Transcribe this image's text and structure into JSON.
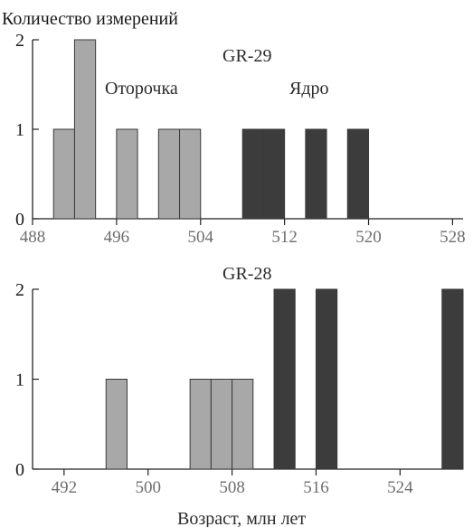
{
  "y_axis_title": "Количество измерений",
  "x_axis_title": "Возраст, млн лет",
  "colors": {
    "rim": "#a8a8a8",
    "core": "#3c3c3c",
    "axis": "#222222"
  },
  "chart_data": [
    {
      "type": "bar",
      "title": "GR-29",
      "ylabel": "Количество измерений",
      "xlabel": "",
      "xlim": [
        488,
        529
      ],
      "ylim": [
        0,
        2
      ],
      "xticks": [
        488,
        496,
        504,
        512,
        520,
        528
      ],
      "yticks": [
        0,
        1,
        2
      ],
      "bin_width": 2,
      "annotations": [
        "Оторочка",
        "Ядро"
      ],
      "series": [
        {
          "name": "Оторочка",
          "bins": [
            {
              "x": 490,
              "value": 1
            },
            {
              "x": 492,
              "value": 2
            },
            {
              "x": 496,
              "value": 1
            },
            {
              "x": 500,
              "value": 1
            },
            {
              "x": 502,
              "value": 1
            }
          ]
        },
        {
          "name": "Ядро",
          "bins": [
            {
              "x": 508,
              "value": 1
            },
            {
              "x": 510,
              "value": 1
            },
            {
              "x": 514,
              "value": 1
            },
            {
              "x": 518,
              "value": 1
            }
          ]
        }
      ]
    },
    {
      "type": "bar",
      "title": "GR-28",
      "ylabel": "",
      "xlabel": "Возраст, млн лет",
      "xlim": [
        489,
        530
      ],
      "ylim": [
        0,
        2
      ],
      "xticks": [
        492,
        500,
        508,
        516,
        524
      ],
      "yticks": [
        0,
        1,
        2
      ],
      "bin_width": 2,
      "series": [
        {
          "name": "Оторочка",
          "bins": [
            {
              "x": 496,
              "value": 1
            },
            {
              "x": 504,
              "value": 1
            },
            {
              "x": 506,
              "value": 1
            },
            {
              "x": 508,
              "value": 1
            }
          ]
        },
        {
          "name": "Ядро",
          "bins": [
            {
              "x": 512,
              "value": 2
            },
            {
              "x": 516,
              "value": 2
            },
            {
              "x": 528,
              "value": 2
            }
          ]
        }
      ]
    }
  ]
}
